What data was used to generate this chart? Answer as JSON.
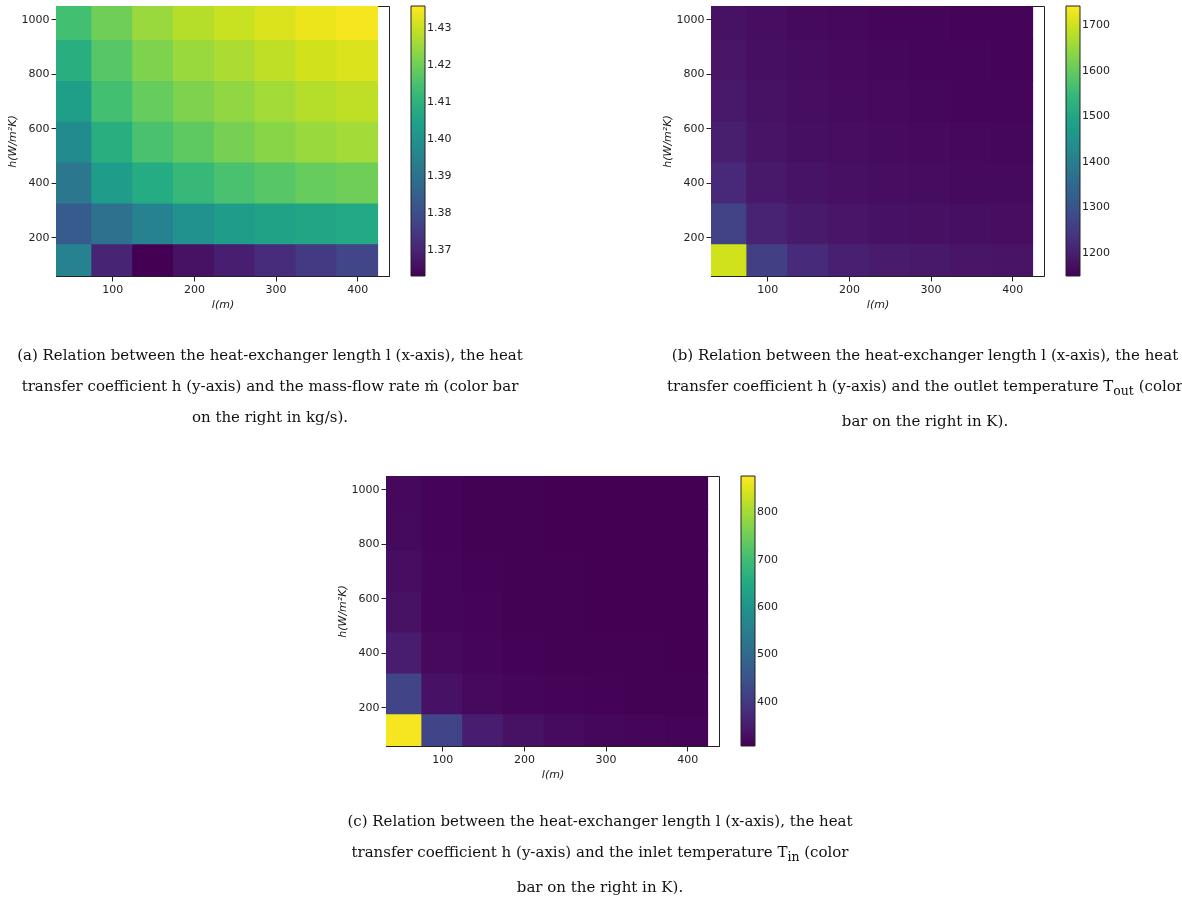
{
  "chart_data": [
    {
      "type": "scatter",
      "marker": "square",
      "xlabel": "l(m)",
      "ylabel": "h(W/m²K)",
      "xlim": [
        31,
        439
      ],
      "ylim": [
        57,
        1048
      ],
      "xticks": [
        100,
        200,
        300,
        400
      ],
      "yticks": [
        200,
        400,
        600,
        800,
        1000
      ],
      "clim": [
        1.363,
        1.436
      ],
      "cticks": [
        1.37,
        1.38,
        1.39,
        {
          "value": 1.4,
          "label": "1.40"
        },
        1.41,
        1.42,
        1.43
      ],
      "annotations": [
        "(a) Relation between the heat-exchanger length l (x-axis), the heat transfer coefficient h (y-axis) and the mass-flow rate ṁ (color bar on the right in kg/s)."
      ],
      "x": [
        50,
        100,
        150,
        200,
        250,
        300,
        350,
        400,
        50,
        100,
        150,
        200,
        250,
        300,
        350,
        400,
        50,
        100,
        150,
        200,
        250,
        300,
        350,
        400,
        50,
        100,
        150,
        200,
        250,
        300,
        350,
        400,
        50,
        100,
        150,
        200,
        250,
        300,
        350,
        400,
        50,
        100,
        150,
        200,
        250,
        300,
        350,
        400,
        50,
        100,
        150,
        200,
        250,
        300,
        350,
        400
      ],
      "values": [
        100,
        100,
        100,
        100,
        100,
        100,
        100,
        100,
        250,
        250,
        250,
        250,
        250,
        250,
        250,
        250,
        400,
        400,
        400,
        400,
        400,
        400,
        400,
        400,
        550,
        550,
        550,
        550,
        550,
        550,
        550,
        550,
        700,
        700,
        700,
        700,
        700,
        700,
        700,
        700,
        850,
        850,
        850,
        850,
        850,
        850,
        850,
        850,
        1000,
        1000,
        1000,
        1000,
        1000,
        1000,
        1000,
        1000
      ],
      "cvalues": [
        1.395,
        1.37,
        1.363,
        1.366,
        1.369,
        1.372,
        1.375,
        1.378,
        1.384,
        1.39,
        1.395,
        1.4,
        1.403,
        1.405,
        1.406,
        1.407,
        1.392,
        1.403,
        1.408,
        1.412,
        1.415,
        1.417,
        1.419,
        1.42,
        1.398,
        1.409,
        1.415,
        1.418,
        1.421,
        1.423,
        1.425,
        1.426,
        1.404,
        1.414,
        1.419,
        1.422,
        1.424,
        1.426,
        1.428,
        1.429,
        1.409,
        1.417,
        1.422,
        1.425,
        1.427,
        1.429,
        1.431,
        1.432,
        1.414,
        1.42,
        1.425,
        1.428,
        1.43,
        1.432,
        1.434,
        1.435
      ]
    },
    {
      "type": "scatter",
      "marker": "square",
      "xlabel": "l(m)",
      "ylabel": "h(W/m²K)",
      "xlim": [
        31,
        439
      ],
      "ylim": [
        57,
        1048
      ],
      "xticks": [
        100,
        200,
        300,
        400
      ],
      "yticks": [
        200,
        400,
        600,
        800,
        1000
      ],
      "clim": [
        1149,
        1742
      ],
      "cticks": [
        1200,
        1300,
        1400,
        1500,
        1600,
        1700
      ],
      "annotations": [
        "(b) Relation between the heat-exchanger length l (x-axis), the heat transfer coefficient h (y-axis) and the outlet temperature T$_{out}$ (color bar on the right in K)."
      ],
      "x": [
        50,
        100,
        150,
        200,
        250,
        300,
        350,
        400,
        50,
        100,
        150,
        200,
        250,
        300,
        350,
        400,
        50,
        100,
        150,
        200,
        250,
        300,
        350,
        400,
        50,
        100,
        150,
        200,
        250,
        300,
        350,
        400,
        50,
        100,
        150,
        200,
        250,
        300,
        350,
        400,
        50,
        100,
        150,
        200,
        250,
        300,
        350,
        400,
        50,
        100,
        150,
        200,
        250,
        300,
        350,
        400
      ],
      "values": [
        100,
        100,
        100,
        100,
        100,
        100,
        100,
        100,
        250,
        250,
        250,
        250,
        250,
        250,
        250,
        250,
        400,
        400,
        400,
        400,
        400,
        400,
        400,
        400,
        550,
        550,
        550,
        550,
        550,
        550,
        550,
        550,
        700,
        700,
        700,
        700,
        700,
        700,
        700,
        700,
        850,
        850,
        850,
        850,
        850,
        850,
        850,
        850,
        1000,
        1000,
        1000,
        1000,
        1000,
        1000,
        1000,
        1000
      ],
      "cvalues": [
        1700,
        1260,
        1220,
        1200,
        1190,
        1185,
        1180,
        1178,
        1265,
        1205,
        1189,
        1181,
        1176,
        1172,
        1170,
        1168,
        1215,
        1185,
        1177,
        1172,
        1168,
        1165,
        1163,
        1162,
        1196,
        1178,
        1171,
        1167,
        1164,
        1161,
        1159,
        1158,
        1186,
        1174,
        1168,
        1164,
        1161,
        1158,
        1157,
        1156,
        1180,
        1171,
        1165,
        1161,
        1158,
        1156,
        1155,
        1154,
        1175,
        1168,
        1163,
        1160,
        1157,
        1155,
        1154,
        1153
      ]
    },
    {
      "type": "scatter",
      "marker": "square",
      "xlabel": "l(m)",
      "ylabel": "h(W/m²K)",
      "xlim": [
        31,
        439
      ],
      "ylim": [
        57,
        1048
      ],
      "xticks": [
        100,
        200,
        300,
        400
      ],
      "yticks": [
        200,
        400,
        600,
        800,
        1000
      ],
      "clim": [
        306,
        877
      ],
      "cticks": [
        400,
        500,
        600,
        700,
        800
      ],
      "annotations": [
        "(c) Relation between the heat-exchanger length l (x-axis), the heat transfer coefficient h (y-axis) and the inlet temperature T$_{in}$ (color bar on the right in K)."
      ],
      "x": [
        50,
        100,
        150,
        200,
        250,
        300,
        350,
        400,
        50,
        100,
        150,
        200,
        250,
        300,
        350,
        400,
        50,
        100,
        150,
        200,
        250,
        300,
        350,
        400,
        50,
        100,
        150,
        200,
        250,
        300,
        350,
        400,
        50,
        100,
        150,
        200,
        250,
        300,
        350,
        400,
        50,
        100,
        150,
        200,
        250,
        300,
        350,
        400,
        50,
        100,
        150,
        200,
        250,
        300,
        350,
        400
      ],
      "values": [
        100,
        100,
        100,
        100,
        100,
        100,
        100,
        100,
        250,
        250,
        250,
        250,
        250,
        250,
        250,
        250,
        400,
        400,
        400,
        400,
        400,
        400,
        400,
        400,
        550,
        550,
        550,
        550,
        550,
        550,
        550,
        550,
        700,
        700,
        700,
        700,
        700,
        700,
        700,
        700,
        850,
        850,
        850,
        850,
        850,
        850,
        850,
        850,
        1000,
        1000,
        1000,
        1000,
        1000,
        1000,
        1000,
        1000
      ],
      "cvalues": [
        870,
        420,
        350,
        330,
        320,
        315,
        312,
        310,
        420,
        332,
        318,
        313,
        310,
        309,
        308,
        307,
        350,
        318,
        312,
        309,
        308,
        307,
        307,
        306,
        331,
        314,
        310,
        308,
        307,
        306,
        306,
        306,
        323,
        312,
        309,
        307,
        307,
        306,
        306,
        306,
        319,
        310,
        308,
        307,
        306,
        306,
        306,
        306,
        316,
        310,
        308,
        307,
        306,
        306,
        306,
        306
      ]
    }
  ]
}
